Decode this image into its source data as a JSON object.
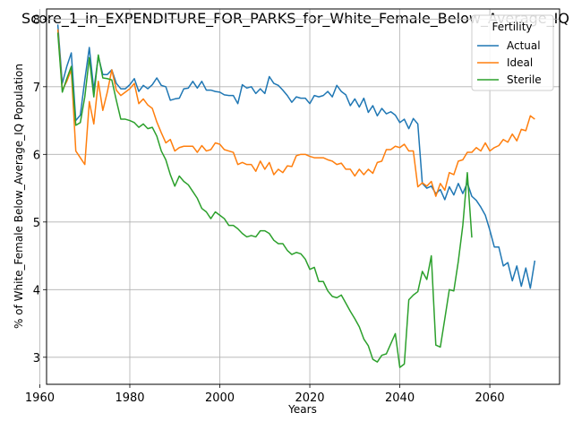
{
  "chart_data": {
    "type": "line",
    "title": "Score_1_in_EXPENDITURE_FOR_PARKS_for_White_Female_Below_Average_IQ",
    "xlabel": "Years",
    "ylabel": "% of White_Female Below_Average_IQ Population",
    "xlim": [
      1961.5,
      2075.5
    ],
    "ylim": [
      2.6,
      8.15
    ],
    "xticks": [
      1960,
      1980,
      2000,
      2020,
      2040,
      2060
    ],
    "yticks": [
      3,
      4,
      5,
      6,
      7,
      8
    ],
    "grid": true,
    "legend": {
      "title": "Fertility",
      "placement": "top-right"
    },
    "series": [
      {
        "name": "Actual",
        "color": "#1f77b4",
        "points": [
          [
            1964,
            7.92
          ],
          [
            1965,
            7.05
          ],
          [
            1966,
            7.3
          ],
          [
            1967,
            7.5
          ],
          [
            1968,
            6.5
          ],
          [
            1969,
            6.58
          ],
          [
            1970,
            7.1
          ],
          [
            1971,
            7.58
          ],
          [
            1972,
            6.95
          ],
          [
            1973,
            7.45
          ],
          [
            1974,
            7.18
          ],
          [
            1975,
            7.18
          ],
          [
            1976,
            7.25
          ],
          [
            1977,
            7.05
          ],
          [
            1978,
            6.97
          ],
          [
            1979,
            6.97
          ],
          [
            1980,
            7.03
          ],
          [
            1981,
            7.12
          ],
          [
            1982,
            6.93
          ],
          [
            1983,
            7.02
          ],
          [
            1984,
            6.97
          ],
          [
            1985,
            7.03
          ],
          [
            1986,
            7.13
          ],
          [
            1987,
            7.02
          ],
          [
            1988,
            7.0
          ],
          [
            1989,
            6.8
          ],
          [
            1990,
            6.82
          ],
          [
            1991,
            6.83
          ],
          [
            1992,
            6.97
          ],
          [
            1993,
            6.98
          ],
          [
            1994,
            7.08
          ],
          [
            1995,
            6.98
          ],
          [
            1996,
            7.08
          ],
          [
            1997,
            6.95
          ],
          [
            1998,
            6.95
          ],
          [
            1999,
            6.93
          ],
          [
            2000,
            6.92
          ],
          [
            2001,
            6.88
          ],
          [
            2002,
            6.87
          ],
          [
            2003,
            6.87
          ],
          [
            2004,
            6.75
          ],
          [
            2005,
            7.03
          ],
          [
            2006,
            6.98
          ],
          [
            2007,
            7.0
          ],
          [
            2008,
            6.9
          ],
          [
            2009,
            6.97
          ],
          [
            2010,
            6.9
          ],
          [
            2011,
            7.15
          ],
          [
            2012,
            7.05
          ],
          [
            2013,
            7.02
          ],
          [
            2014,
            6.95
          ],
          [
            2015,
            6.87
          ],
          [
            2016,
            6.77
          ],
          [
            2017,
            6.85
          ],
          [
            2018,
            6.83
          ],
          [
            2019,
            6.83
          ],
          [
            2020,
            6.75
          ],
          [
            2021,
            6.87
          ],
          [
            2022,
            6.85
          ],
          [
            2023,
            6.87
          ],
          [
            2024,
            6.93
          ],
          [
            2025,
            6.85
          ],
          [
            2026,
            7.02
          ],
          [
            2027,
            6.93
          ],
          [
            2028,
            6.88
          ],
          [
            2029,
            6.72
          ],
          [
            2030,
            6.82
          ],
          [
            2031,
            6.7
          ],
          [
            2032,
            6.83
          ],
          [
            2033,
            6.62
          ],
          [
            2034,
            6.72
          ],
          [
            2035,
            6.57
          ],
          [
            2036,
            6.68
          ],
          [
            2037,
            6.6
          ],
          [
            2038,
            6.63
          ],
          [
            2039,
            6.58
          ],
          [
            2040,
            6.47
          ],
          [
            2041,
            6.52
          ],
          [
            2042,
            6.38
          ],
          [
            2043,
            6.53
          ],
          [
            2044,
            6.45
          ],
          [
            2045,
            5.57
          ],
          [
            2046,
            5.5
          ],
          [
            2047,
            5.53
          ],
          [
            2048,
            5.42
          ],
          [
            2049,
            5.48
          ],
          [
            2050,
            5.33
          ],
          [
            2051,
            5.52
          ],
          [
            2052,
            5.4
          ],
          [
            2053,
            5.57
          ],
          [
            2054,
            5.42
          ],
          [
            2055,
            5.58
          ],
          [
            2056,
            5.38
          ],
          [
            2057,
            5.32
          ],
          [
            2058,
            5.22
          ],
          [
            2059,
            5.1
          ],
          [
            2060,
            4.88
          ],
          [
            2061,
            4.63
          ],
          [
            2062,
            4.63
          ],
          [
            2063,
            4.35
          ],
          [
            2064,
            4.4
          ],
          [
            2065,
            4.13
          ],
          [
            2066,
            4.35
          ],
          [
            2067,
            4.05
          ],
          [
            2068,
            4.32
          ],
          [
            2069,
            4.02
          ],
          [
            2070,
            4.43
          ]
        ]
      },
      {
        "name": "Ideal",
        "color": "#ff7f0e",
        "points": [
          [
            1964,
            7.85
          ],
          [
            1965,
            6.95
          ],
          [
            1966,
            7.08
          ],
          [
            1967,
            7.25
          ],
          [
            1968,
            6.05
          ],
          [
            1969,
            5.95
          ],
          [
            1970,
            5.85
          ],
          [
            1971,
            6.78
          ],
          [
            1972,
            6.45
          ],
          [
            1973,
            7.08
          ],
          [
            1974,
            6.65
          ],
          [
            1975,
            6.92
          ],
          [
            1976,
            7.25
          ],
          [
            1977,
            6.95
          ],
          [
            1978,
            6.87
          ],
          [
            1979,
            6.92
          ],
          [
            1980,
            6.97
          ],
          [
            1981,
            7.05
          ],
          [
            1982,
            6.75
          ],
          [
            1983,
            6.82
          ],
          [
            1984,
            6.73
          ],
          [
            1985,
            6.68
          ],
          [
            1986,
            6.48
          ],
          [
            1987,
            6.32
          ],
          [
            1988,
            6.17
          ],
          [
            1989,
            6.22
          ],
          [
            1990,
            6.05
          ],
          [
            1991,
            6.1
          ],
          [
            1992,
            6.12
          ],
          [
            1993,
            6.12
          ],
          [
            1994,
            6.12
          ],
          [
            1995,
            6.03
          ],
          [
            1996,
            6.13
          ],
          [
            1997,
            6.05
          ],
          [
            1998,
            6.07
          ],
          [
            1999,
            6.17
          ],
          [
            2000,
            6.15
          ],
          [
            2001,
            6.07
          ],
          [
            2002,
            6.05
          ],
          [
            2003,
            6.03
          ],
          [
            2004,
            5.85
          ],
          [
            2005,
            5.88
          ],
          [
            2006,
            5.85
          ],
          [
            2007,
            5.85
          ],
          [
            2008,
            5.75
          ],
          [
            2009,
            5.9
          ],
          [
            2010,
            5.78
          ],
          [
            2011,
            5.88
          ],
          [
            2012,
            5.7
          ],
          [
            2013,
            5.78
          ],
          [
            2014,
            5.73
          ],
          [
            2015,
            5.83
          ],
          [
            2016,
            5.82
          ],
          [
            2017,
            5.98
          ],
          [
            2018,
            6.0
          ],
          [
            2019,
            6.0
          ],
          [
            2020,
            5.97
          ],
          [
            2021,
            5.95
          ],
          [
            2022,
            5.95
          ],
          [
            2023,
            5.95
          ],
          [
            2024,
            5.92
          ],
          [
            2025,
            5.9
          ],
          [
            2026,
            5.85
          ],
          [
            2027,
            5.87
          ],
          [
            2028,
            5.78
          ],
          [
            2029,
            5.78
          ],
          [
            2030,
            5.68
          ],
          [
            2031,
            5.78
          ],
          [
            2032,
            5.7
          ],
          [
            2033,
            5.78
          ],
          [
            2034,
            5.72
          ],
          [
            2035,
            5.88
          ],
          [
            2036,
            5.9
          ],
          [
            2037,
            6.07
          ],
          [
            2038,
            6.07
          ],
          [
            2039,
            6.12
          ],
          [
            2040,
            6.1
          ],
          [
            2041,
            6.15
          ],
          [
            2042,
            6.05
          ],
          [
            2043,
            6.05
          ],
          [
            2044,
            5.52
          ],
          [
            2045,
            5.58
          ],
          [
            2046,
            5.53
          ],
          [
            2047,
            5.6
          ],
          [
            2048,
            5.38
          ],
          [
            2049,
            5.57
          ],
          [
            2050,
            5.47
          ],
          [
            2051,
            5.73
          ],
          [
            2052,
            5.7
          ],
          [
            2053,
            5.9
          ],
          [
            2054,
            5.92
          ],
          [
            2055,
            6.03
          ],
          [
            2056,
            6.03
          ],
          [
            2057,
            6.1
          ],
          [
            2058,
            6.05
          ],
          [
            2059,
            6.17
          ],
          [
            2060,
            6.05
          ],
          [
            2061,
            6.1
          ],
          [
            2062,
            6.13
          ],
          [
            2063,
            6.22
          ],
          [
            2064,
            6.18
          ],
          [
            2065,
            6.3
          ],
          [
            2066,
            6.2
          ],
          [
            2067,
            6.37
          ],
          [
            2068,
            6.35
          ],
          [
            2069,
            6.57
          ],
          [
            2070,
            6.52
          ]
        ]
      },
      {
        "name": "Sterile",
        "color": "#2ca02c",
        "points": [
          [
            1964,
            7.8
          ],
          [
            1965,
            6.92
          ],
          [
            1966,
            7.12
          ],
          [
            1967,
            7.3
          ],
          [
            1968,
            6.43
          ],
          [
            1969,
            6.47
          ],
          [
            1970,
            6.85
          ],
          [
            1971,
            7.43
          ],
          [
            1972,
            6.85
          ],
          [
            1973,
            7.47
          ],
          [
            1974,
            7.13
          ],
          [
            1975,
            7.12
          ],
          [
            1976,
            7.1
          ],
          [
            1977,
            6.8
          ],
          [
            1978,
            6.52
          ],
          [
            1979,
            6.52
          ],
          [
            1980,
            6.5
          ],
          [
            1981,
            6.47
          ],
          [
            1982,
            6.4
          ],
          [
            1983,
            6.45
          ],
          [
            1984,
            6.38
          ],
          [
            1985,
            6.4
          ],
          [
            1986,
            6.27
          ],
          [
            1987,
            6.05
          ],
          [
            1988,
            5.92
          ],
          [
            1989,
            5.7
          ],
          [
            1990,
            5.53
          ],
          [
            1991,
            5.68
          ],
          [
            1992,
            5.6
          ],
          [
            1993,
            5.55
          ],
          [
            1994,
            5.45
          ],
          [
            1995,
            5.35
          ],
          [
            1996,
            5.2
          ],
          [
            1997,
            5.15
          ],
          [
            1998,
            5.05
          ],
          [
            1999,
            5.15
          ],
          [
            2000,
            5.1
          ],
          [
            2001,
            5.05
          ],
          [
            2002,
            4.95
          ],
          [
            2003,
            4.95
          ],
          [
            2004,
            4.9
          ],
          [
            2005,
            4.83
          ],
          [
            2006,
            4.78
          ],
          [
            2007,
            4.8
          ],
          [
            2008,
            4.78
          ],
          [
            2009,
            4.87
          ],
          [
            2010,
            4.87
          ],
          [
            2011,
            4.83
          ],
          [
            2012,
            4.73
          ],
          [
            2013,
            4.68
          ],
          [
            2014,
            4.68
          ],
          [
            2015,
            4.58
          ],
          [
            2016,
            4.52
          ],
          [
            2017,
            4.55
          ],
          [
            2018,
            4.53
          ],
          [
            2019,
            4.45
          ],
          [
            2020,
            4.3
          ],
          [
            2021,
            4.33
          ],
          [
            2022,
            4.12
          ],
          [
            2023,
            4.12
          ],
          [
            2024,
            3.98
          ],
          [
            2025,
            3.9
          ],
          [
            2026,
            3.88
          ],
          [
            2027,
            3.92
          ],
          [
            2028,
            3.8
          ],
          [
            2029,
            3.68
          ],
          [
            2030,
            3.57
          ],
          [
            2031,
            3.45
          ],
          [
            2032,
            3.27
          ],
          [
            2033,
            3.17
          ],
          [
            2034,
            2.97
          ],
          [
            2035,
            2.93
          ],
          [
            2036,
            3.03
          ],
          [
            2037,
            3.05
          ],
          [
            2038,
            3.2
          ],
          [
            2039,
            3.35
          ],
          [
            2040,
            2.85
          ],
          [
            2041,
            2.9
          ],
          [
            2042,
            3.85
          ],
          [
            2043,
            3.92
          ],
          [
            2044,
            3.97
          ],
          [
            2045,
            4.27
          ],
          [
            2046,
            4.15
          ],
          [
            2047,
            4.5
          ],
          [
            2048,
            3.18
          ],
          [
            2049,
            3.15
          ],
          [
            2050,
            3.57
          ],
          [
            2051,
            4.0
          ],
          [
            2052,
            3.98
          ],
          [
            2053,
            4.42
          ],
          [
            2054,
            4.95
          ],
          [
            2055,
            5.73
          ],
          [
            2056,
            4.77
          ]
        ]
      }
    ]
  }
}
